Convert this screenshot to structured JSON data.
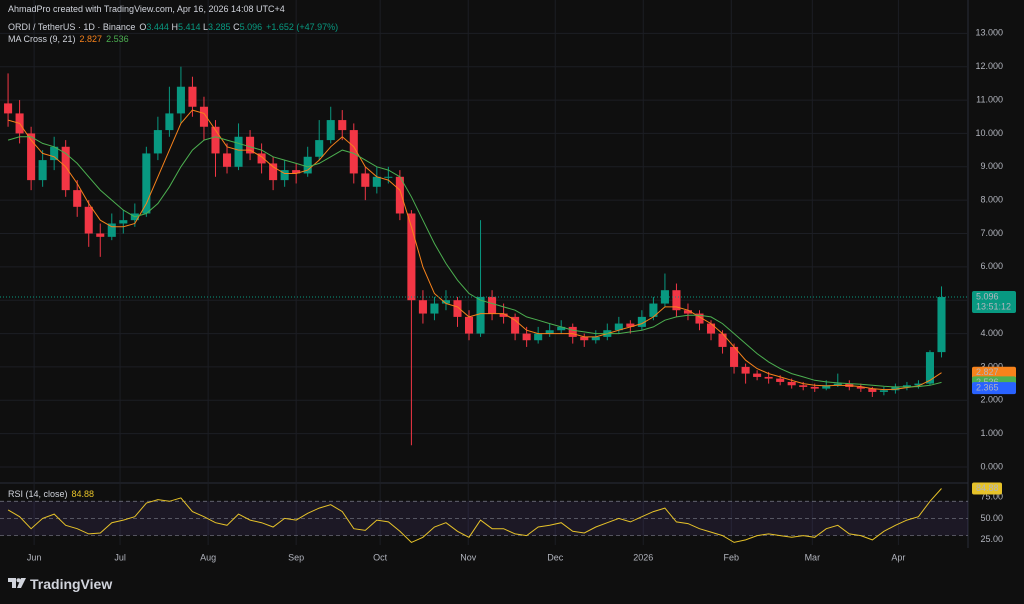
{
  "header": {
    "credit": "AhmadPro created with TradingView.com, Apr 16, 2026 14:08 UTC+4"
  },
  "chart_data": {
    "type": "candlestick",
    "symbol": "ORDI / TetherUS · 1D · Binance",
    "ohlc_labels": [
      "O",
      "H",
      "L",
      "C"
    ],
    "change": "+1.652 (+47.97%)",
    "up_color": "#089981",
    "down_color": "#f23645",
    "candles": [
      [
        10.9,
        11.8,
        10.2,
        10.6
      ],
      [
        10.6,
        11.0,
        9.7,
        10.0
      ],
      [
        10.0,
        10.2,
        8.3,
        8.6
      ],
      [
        8.6,
        9.5,
        8.4,
        9.2
      ],
      [
        9.2,
        9.9,
        8.9,
        9.6
      ],
      [
        9.6,
        9.8,
        8.1,
        8.3
      ],
      [
        8.3,
        8.6,
        7.5,
        7.8
      ],
      [
        7.8,
        8.0,
        6.6,
        7.0
      ],
      [
        7.0,
        7.3,
        6.3,
        6.9
      ],
      [
        6.9,
        7.6,
        6.8,
        7.3
      ],
      [
        7.3,
        7.7,
        7.0,
        7.4
      ],
      [
        7.4,
        7.9,
        7.2,
        7.6
      ],
      [
        7.6,
        9.6,
        7.5,
        9.4
      ],
      [
        9.4,
        10.5,
        9.2,
        10.1
      ],
      [
        10.1,
        11.4,
        9.9,
        10.6
      ],
      [
        10.6,
        12.0,
        10.3,
        11.4
      ],
      [
        11.4,
        11.7,
        10.5,
        10.8
      ],
      [
        10.8,
        11.1,
        9.8,
        10.2
      ],
      [
        10.2,
        10.4,
        8.7,
        9.4
      ],
      [
        9.4,
        9.7,
        8.8,
        9.0
      ],
      [
        9.0,
        10.3,
        8.9,
        9.9
      ],
      [
        9.9,
        10.1,
        9.2,
        9.4
      ],
      [
        9.4,
        9.7,
        8.8,
        9.1
      ],
      [
        9.1,
        9.3,
        8.3,
        8.6
      ],
      [
        8.6,
        9.2,
        8.4,
        8.9
      ],
      [
        8.9,
        9.1,
        8.5,
        8.8
      ],
      [
        8.8,
        9.6,
        8.7,
        9.3
      ],
      [
        9.3,
        10.4,
        9.2,
        9.8
      ],
      [
        9.8,
        10.8,
        9.7,
        10.4
      ],
      [
        10.4,
        10.7,
        9.8,
        10.1
      ],
      [
        10.1,
        10.3,
        8.5,
        8.8
      ],
      [
        8.8,
        9.0,
        8.0,
        8.4
      ],
      [
        8.4,
        9.0,
        8.2,
        8.7
      ],
      [
        8.7,
        9.0,
        8.5,
        8.7
      ],
      [
        8.7,
        8.9,
        7.4,
        7.6
      ],
      [
        7.6,
        7.7,
        0.65,
        5.0
      ],
      [
        5.0,
        5.3,
        4.3,
        4.6
      ],
      [
        4.6,
        5.1,
        4.4,
        4.9
      ],
      [
        4.9,
        5.3,
        4.7,
        5.0
      ],
      [
        5.0,
        5.1,
        4.2,
        4.5
      ],
      [
        4.5,
        4.7,
        3.8,
        4.0
      ],
      [
        4.0,
        7.4,
        3.9,
        5.1
      ],
      [
        5.1,
        5.3,
        4.4,
        4.6
      ],
      [
        4.6,
        4.9,
        4.3,
        4.5
      ],
      [
        4.5,
        4.6,
        3.8,
        4.0
      ],
      [
        4.0,
        4.2,
        3.6,
        3.8
      ],
      [
        3.8,
        4.2,
        3.7,
        4.0
      ],
      [
        4.0,
        4.3,
        3.9,
        4.1
      ],
      [
        4.1,
        4.4,
        4.0,
        4.2
      ],
      [
        4.2,
        4.3,
        3.7,
        3.9
      ],
      [
        3.9,
        4.0,
        3.6,
        3.8
      ],
      [
        3.8,
        4.1,
        3.7,
        3.9
      ],
      [
        3.9,
        4.3,
        3.8,
        4.1
      ],
      [
        4.1,
        4.5,
        4.0,
        4.3
      ],
      [
        4.3,
        4.4,
        4.0,
        4.2
      ],
      [
        4.2,
        4.7,
        4.1,
        4.5
      ],
      [
        4.5,
        5.1,
        4.4,
        4.9
      ],
      [
        4.9,
        5.8,
        4.8,
        5.3
      ],
      [
        5.3,
        5.5,
        4.5,
        4.7
      ],
      [
        4.7,
        4.9,
        4.4,
        4.6
      ],
      [
        4.6,
        4.7,
        4.1,
        4.3
      ],
      [
        4.3,
        4.4,
        3.8,
        4.0
      ],
      [
        4.0,
        4.1,
        3.4,
        3.6
      ],
      [
        3.6,
        3.7,
        2.8,
        3.0
      ],
      [
        3.0,
        3.1,
        2.5,
        2.8
      ],
      [
        2.8,
        2.9,
        2.6,
        2.7
      ],
      [
        2.7,
        2.85,
        2.5,
        2.65
      ],
      [
        2.65,
        2.75,
        2.45,
        2.55
      ],
      [
        2.55,
        2.65,
        2.35,
        2.45
      ],
      [
        2.45,
        2.55,
        2.3,
        2.4
      ],
      [
        2.4,
        2.5,
        2.25,
        2.35
      ],
      [
        2.35,
        2.6,
        2.3,
        2.45
      ],
      [
        2.45,
        2.8,
        2.4,
        2.5
      ],
      [
        2.5,
        2.6,
        2.3,
        2.4
      ],
      [
        2.4,
        2.5,
        2.25,
        2.35
      ],
      [
        2.35,
        2.4,
        2.1,
        2.25
      ],
      [
        2.25,
        2.4,
        2.15,
        2.3
      ],
      [
        2.3,
        2.5,
        2.2,
        2.4
      ],
      [
        2.4,
        2.55,
        2.3,
        2.45
      ],
      [
        2.45,
        2.6,
        2.35,
        2.5
      ],
      [
        2.5,
        3.5,
        2.45,
        3.444
      ],
      [
        3.444,
        5.414,
        3.285,
        5.096
      ]
    ],
    "last_price_timer": "13:51:12",
    "indicator": {
      "name": "MA Cross (9, 21)",
      "lines": [
        {
          "color": "#f7821b",
          "values": [
            10.4,
            10.3,
            9.8,
            9.4,
            9.3,
            9.0,
            8.5,
            7.9,
            7.4,
            7.2,
            7.2,
            7.3,
            7.9,
            8.7,
            9.5,
            10.3,
            10.7,
            10.6,
            10.1,
            9.6,
            9.5,
            9.5,
            9.3,
            9.0,
            8.8,
            8.8,
            8.9,
            9.2,
            9.6,
            9.9,
            9.6,
            9.0,
            8.7,
            8.6,
            8.3,
            7.2,
            6.0,
            5.2,
            4.9,
            4.8,
            4.5,
            4.6,
            4.6,
            4.6,
            4.4,
            4.1,
            4.0,
            4.0,
            4.0,
            4.0,
            3.9,
            3.9,
            4.0,
            4.1,
            4.2,
            4.3,
            4.5,
            4.8,
            4.8,
            4.7,
            4.5,
            4.3,
            4.0,
            3.6,
            3.2,
            2.95,
            2.8,
            2.7,
            2.6,
            2.5,
            2.45,
            2.43,
            2.45,
            2.44,
            2.41,
            2.35,
            2.32,
            2.33,
            2.38,
            2.43,
            2.6,
            2.827
          ]
        },
        {
          "color": "#4caf50",
          "values": [
            9.8,
            9.9,
            9.9,
            9.7,
            9.6,
            9.4,
            9.1,
            8.7,
            8.3,
            8.0,
            7.7,
            7.5,
            7.6,
            7.9,
            8.4,
            9.0,
            9.5,
            9.8,
            9.9,
            9.8,
            9.7,
            9.6,
            9.5,
            9.3,
            9.2,
            9.1,
            9.0,
            9.1,
            9.3,
            9.5,
            9.4,
            9.2,
            9.0,
            8.9,
            8.7,
            8.1,
            7.4,
            6.7,
            6.1,
            5.6,
            5.2,
            5.0,
            4.9,
            4.8,
            4.7,
            4.5,
            4.4,
            4.3,
            4.2,
            4.1,
            4.05,
            4.0,
            4.0,
            4.0,
            4.05,
            4.1,
            4.2,
            4.4,
            4.5,
            4.55,
            4.55,
            4.5,
            4.3,
            4.0,
            3.7,
            3.4,
            3.15,
            2.95,
            2.8,
            2.7,
            2.6,
            2.55,
            2.52,
            2.5,
            2.48,
            2.45,
            2.42,
            2.4,
            2.4,
            2.41,
            2.45,
            2.536
          ]
        }
      ]
    },
    "last_cross": 2.365,
    "cross_color": "#2962ff",
    "xlim": [
      -0.7,
      83.3
    ],
    "xticks": [
      {
        "value": 2.26,
        "label": "Jun"
      },
      {
        "value": 9.72,
        "label": "Jul"
      },
      {
        "value": 17.36,
        "label": "Aug"
      },
      {
        "value": 25.0,
        "label": "Sep"
      },
      {
        "value": 32.29,
        "label": "Oct"
      },
      {
        "value": 39.93,
        "label": "Nov"
      },
      {
        "value": 47.48,
        "label": "Dec"
      },
      {
        "value": 55.12,
        "label": "2026"
      },
      {
        "value": 62.76,
        "label": "Feb"
      },
      {
        "value": 69.79,
        "label": "Mar"
      },
      {
        "value": 77.26,
        "label": "Apr"
      }
    ],
    "ylim": [
      -0.45,
      14.0
    ],
    "yticks": [
      {
        "value": 0,
        "label": "0.000"
      },
      {
        "value": 1,
        "label": "1.000"
      },
      {
        "value": 2,
        "label": "2.000"
      },
      {
        "value": 3,
        "label": "3.000"
      },
      {
        "value": 4,
        "label": "4.000"
      },
      {
        "value": 5,
        "label": "5.000"
      },
      {
        "value": 6,
        "label": "6.000"
      },
      {
        "value": 7,
        "label": "7.000"
      },
      {
        "value": 8,
        "label": "8.000"
      },
      {
        "value": 9,
        "label": "9.000"
      },
      {
        "value": 10,
        "label": "10.000"
      },
      {
        "value": 11,
        "label": "11.000"
      },
      {
        "value": 12,
        "label": "12.000"
      },
      {
        "value": 13,
        "label": "13.000"
      }
    ],
    "rsi": {
      "name": "RSI (14, close)",
      "color": "#e6c229",
      "values": [
        60,
        52,
        38,
        50,
        55,
        42,
        38,
        32,
        33,
        45,
        48,
        52,
        68,
        72,
        70,
        74,
        58,
        52,
        45,
        42,
        55,
        48,
        45,
        40,
        50,
        48,
        56,
        62,
        66,
        58,
        38,
        36,
        48,
        46,
        35,
        22,
        28,
        40,
        45,
        35,
        28,
        48,
        38,
        38,
        32,
        30,
        40,
        42,
        45,
        35,
        33,
        40,
        45,
        50,
        46,
        52,
        58,
        62,
        46,
        44,
        38,
        34,
        30,
        22,
        25,
        30,
        32,
        30,
        28,
        30,
        28,
        38,
        42,
        32,
        30,
        25,
        35,
        42,
        48,
        52,
        70,
        84.88
      ],
      "ylim": [
        19,
        89
      ],
      "yticks": [
        {
          "value": 25,
          "label": "25.00"
        },
        {
          "value": 50,
          "label": "50.00"
        },
        {
          "value": 75,
          "label": "75.00"
        }
      ],
      "levels": [
        30,
        50,
        70
      ]
    }
  },
  "footer": {
    "brand": "TradingView"
  }
}
